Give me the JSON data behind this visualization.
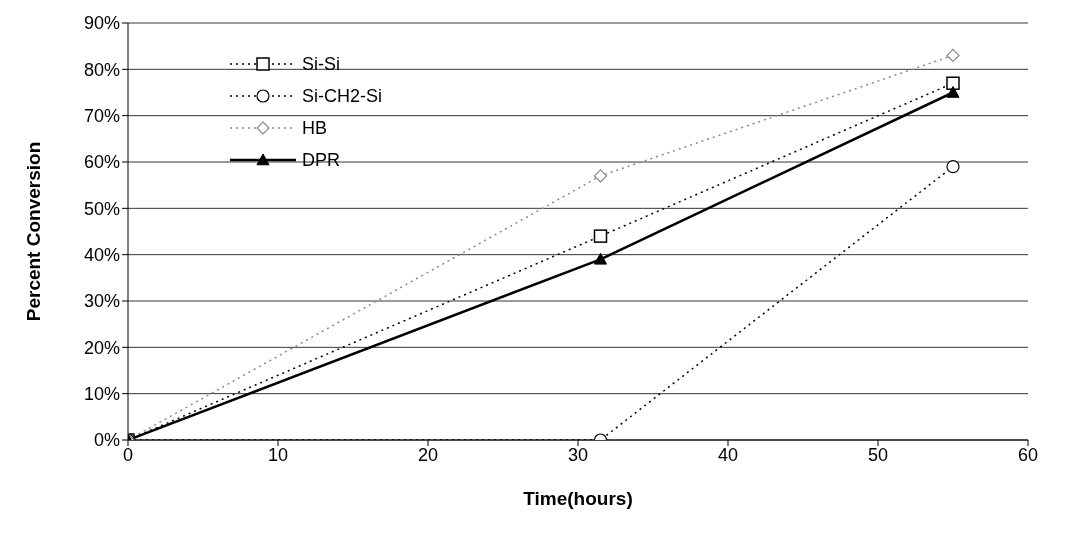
{
  "chart_data": {
    "type": "line",
    "xlabel": "Time(hours)",
    "ylabel": "Percent Conversion",
    "xlim": [
      0,
      60
    ],
    "xticks": [
      0,
      10,
      20,
      30,
      40,
      50,
      60
    ],
    "ylim": [
      0,
      90
    ],
    "yticks": [
      {
        "value": 0,
        "label": "0%"
      },
      {
        "value": 10,
        "label": "10%"
      },
      {
        "value": 20,
        "label": "20%"
      },
      {
        "value": 30,
        "label": "30%"
      },
      {
        "value": 40,
        "label": "40%"
      },
      {
        "value": 50,
        "label": "50%"
      },
      {
        "value": 60,
        "label": "60%"
      },
      {
        "value": 70,
        "label": "70%"
      },
      {
        "value": 80,
        "label": "80%"
      },
      {
        "value": 90,
        "label": "90%"
      }
    ],
    "grid": "y",
    "legend": "top left",
    "series": [
      {
        "name": "Si-Si",
        "color": "#000000",
        "x": [
          0,
          31.5,
          55
        ],
        "values": [
          0,
          44,
          77
        ],
        "marker": "square",
        "line_style": "dotted"
      },
      {
        "name": "Si-CH2-Si",
        "color": "#000000",
        "x": [
          0,
          31.5,
          55
        ],
        "values": [
          0,
          0,
          59
        ],
        "marker": "circle",
        "line_style": "dotted"
      },
      {
        "name": "HB",
        "color": "#888888",
        "x": [
          0,
          31.5,
          55
        ],
        "values": [
          0,
          57,
          83
        ],
        "marker": "diamond",
        "line_style": "dotted"
      },
      {
        "name": "DPR",
        "color": "#000000",
        "x": [
          0,
          31.5,
          55
        ],
        "values": [
          0,
          39,
          75
        ],
        "marker": "triangle",
        "line_style": "solid"
      }
    ]
  }
}
